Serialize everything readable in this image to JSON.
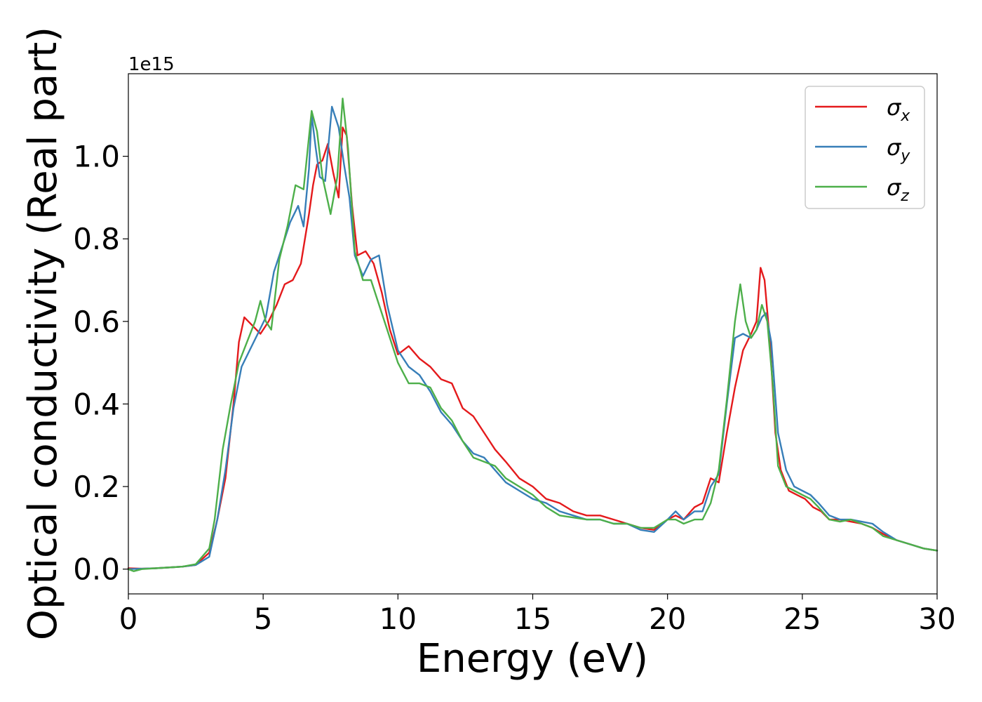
{
  "chart_data": {
    "type": "line",
    "title": "",
    "xlabel": "Energy (eV)",
    "ylabel": "Optical conductivity (Real part)",
    "y_offset_label": "1e15",
    "xlim": [
      0,
      30
    ],
    "ylim": [
      -0.06,
      1.2
    ],
    "xticks": [
      0,
      5,
      10,
      15,
      20,
      25,
      30
    ],
    "xtick_labels": [
      "0",
      "5",
      "10",
      "15",
      "20",
      "25",
      "30"
    ],
    "yticks": [
      0.0,
      0.2,
      0.4,
      0.6,
      0.8,
      1.0
    ],
    "ytick_labels": [
      "0.0",
      "0.2",
      "0.4",
      "0.6",
      "0.8",
      "1.0"
    ],
    "grid": false,
    "legend_position": "top-right",
    "series": [
      {
        "name": "σx",
        "symbol": "σ",
        "subscript": "x",
        "color": "#e41a1c",
        "x": [
          0,
          0.5,
          1,
          2,
          2.5,
          3,
          3.3,
          3.6,
          3.9,
          4.1,
          4.3,
          4.6,
          4.9,
          5.2,
          5.5,
          5.8,
          6.1,
          6.4,
          6.7,
          6.85,
          7.0,
          7.2,
          7.4,
          7.6,
          7.8,
          7.95,
          8.1,
          8.3,
          8.5,
          8.8,
          9.1,
          9.4,
          9.7,
          10.0,
          10.4,
          10.8,
          11.2,
          11.6,
          12.0,
          12.4,
          12.8,
          13.2,
          13.6,
          14.0,
          14.5,
          15.0,
          15.5,
          16.0,
          16.5,
          17.0,
          17.5,
          18.0,
          18.5,
          19.0,
          19.5,
          20.0,
          20.3,
          20.6,
          21.0,
          21.3,
          21.6,
          21.9,
          22.2,
          22.5,
          22.8,
          23.1,
          23.3,
          23.45,
          23.6,
          23.8,
          24.0,
          24.2,
          24.5,
          24.8,
          25.1,
          25.4,
          25.7,
          26.0,
          26.4,
          26.8,
          27.2,
          27.6,
          28.0,
          28.5,
          29.0,
          29.5,
          30.0
        ],
        "y": [
          0.002,
          0.001,
          0.002,
          0.006,
          0.01,
          0.04,
          0.12,
          0.22,
          0.4,
          0.55,
          0.61,
          0.59,
          0.57,
          0.6,
          0.64,
          0.69,
          0.7,
          0.74,
          0.86,
          0.93,
          0.98,
          0.99,
          1.03,
          0.96,
          0.9,
          1.07,
          1.05,
          0.88,
          0.76,
          0.77,
          0.74,
          0.67,
          0.58,
          0.52,
          0.54,
          0.51,
          0.49,
          0.46,
          0.45,
          0.39,
          0.37,
          0.33,
          0.29,
          0.26,
          0.22,
          0.2,
          0.17,
          0.16,
          0.14,
          0.13,
          0.13,
          0.12,
          0.11,
          0.1,
          0.095,
          0.12,
          0.13,
          0.12,
          0.15,
          0.16,
          0.22,
          0.21,
          0.33,
          0.44,
          0.53,
          0.57,
          0.6,
          0.73,
          0.7,
          0.55,
          0.33,
          0.24,
          0.19,
          0.18,
          0.17,
          0.15,
          0.14,
          0.12,
          0.12,
          0.115,
          0.11,
          0.1,
          0.085,
          0.07,
          0.06,
          0.05,
          0.045
        ]
      },
      {
        "name": "σy",
        "symbol": "σ",
        "subscript": "y",
        "color": "#377eb8",
        "x": [
          0,
          0.5,
          1,
          2,
          2.5,
          3,
          3.3,
          3.6,
          3.9,
          4.2,
          4.5,
          4.8,
          5.1,
          5.4,
          5.7,
          6.0,
          6.3,
          6.5,
          6.7,
          6.8,
          6.95,
          7.1,
          7.3,
          7.55,
          7.8,
          8.0,
          8.2,
          8.4,
          8.7,
          9.0,
          9.3,
          9.6,
          10.0,
          10.4,
          10.8,
          11.2,
          11.6,
          12.0,
          12.4,
          12.8,
          13.2,
          13.6,
          14.0,
          14.5,
          15.0,
          15.5,
          16.0,
          16.5,
          17.0,
          17.5,
          18.0,
          18.5,
          19.0,
          19.5,
          20.0,
          20.3,
          20.6,
          21.0,
          21.3,
          21.6,
          21.9,
          22.2,
          22.5,
          22.8,
          23.1,
          23.3,
          23.5,
          23.65,
          23.85,
          24.1,
          24.4,
          24.7,
          25.0,
          25.3,
          25.6,
          26.0,
          26.4,
          26.8,
          27.2,
          27.6,
          28.0,
          28.5,
          29.0,
          29.5,
          30.0
        ],
        "y": [
          0.0,
          0.001,
          0.002,
          0.006,
          0.01,
          0.03,
          0.12,
          0.24,
          0.39,
          0.49,
          0.53,
          0.57,
          0.61,
          0.72,
          0.78,
          0.84,
          0.88,
          0.83,
          0.97,
          1.1,
          1.02,
          0.95,
          0.94,
          1.12,
          1.07,
          0.98,
          0.9,
          0.76,
          0.71,
          0.75,
          0.76,
          0.64,
          0.53,
          0.49,
          0.47,
          0.43,
          0.38,
          0.35,
          0.31,
          0.28,
          0.27,
          0.24,
          0.21,
          0.19,
          0.17,
          0.16,
          0.14,
          0.13,
          0.12,
          0.12,
          0.11,
          0.11,
          0.095,
          0.09,
          0.12,
          0.14,
          0.12,
          0.14,
          0.14,
          0.2,
          0.23,
          0.4,
          0.56,
          0.57,
          0.56,
          0.58,
          0.61,
          0.62,
          0.55,
          0.33,
          0.24,
          0.2,
          0.19,
          0.18,
          0.16,
          0.13,
          0.12,
          0.12,
          0.115,
          0.11,
          0.09,
          0.07,
          0.06,
          0.05,
          0.045
        ]
      },
      {
        "name": "σz",
        "symbol": "σ",
        "subscript": "z",
        "color": "#4daf4a",
        "x": [
          0,
          0.2,
          0.5,
          1,
          2,
          2.5,
          3,
          3.2,
          3.5,
          3.8,
          4.1,
          4.4,
          4.7,
          4.9,
          5.1,
          5.3,
          5.6,
          5.9,
          6.2,
          6.5,
          6.8,
          7.0,
          7.2,
          7.5,
          7.75,
          7.95,
          8.15,
          8.4,
          8.7,
          9.0,
          9.3,
          9.6,
          10.0,
          10.4,
          10.8,
          11.2,
          11.6,
          12.0,
          12.4,
          12.8,
          13.2,
          13.6,
          14.0,
          14.5,
          15.0,
          15.5,
          16.0,
          16.5,
          17.0,
          17.5,
          18.0,
          18.5,
          19.0,
          19.5,
          20.0,
          20.3,
          20.6,
          21.0,
          21.3,
          21.6,
          21.9,
          22.2,
          22.5,
          22.7,
          22.9,
          23.1,
          23.3,
          23.5,
          23.7,
          23.9,
          24.1,
          24.4,
          24.7,
          25.0,
          25.3,
          25.6,
          26.0,
          26.4,
          26.8,
          27.2,
          27.6,
          28.0,
          28.5,
          29.0,
          29.5,
          30.0
        ],
        "y": [
          0.0,
          -0.005,
          0.0,
          0.002,
          0.006,
          0.012,
          0.05,
          0.12,
          0.29,
          0.4,
          0.5,
          0.55,
          0.6,
          0.65,
          0.6,
          0.58,
          0.75,
          0.83,
          0.93,
          0.92,
          1.11,
          1.06,
          0.95,
          0.86,
          0.95,
          1.14,
          1.02,
          0.77,
          0.7,
          0.7,
          0.64,
          0.58,
          0.5,
          0.45,
          0.45,
          0.44,
          0.39,
          0.36,
          0.31,
          0.27,
          0.26,
          0.25,
          0.22,
          0.2,
          0.18,
          0.15,
          0.13,
          0.125,
          0.12,
          0.12,
          0.11,
          0.11,
          0.1,
          0.1,
          0.12,
          0.12,
          0.11,
          0.12,
          0.12,
          0.16,
          0.24,
          0.41,
          0.6,
          0.69,
          0.6,
          0.56,
          0.58,
          0.64,
          0.6,
          0.45,
          0.25,
          0.2,
          0.19,
          0.18,
          0.17,
          0.15,
          0.12,
          0.115,
          0.12,
          0.11,
          0.1,
          0.08,
          0.07,
          0.06,
          0.05,
          0.045
        ]
      }
    ]
  }
}
